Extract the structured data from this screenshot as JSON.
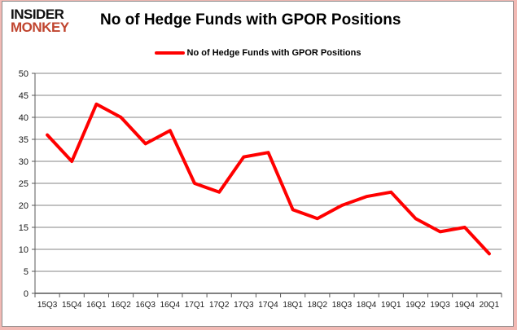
{
  "logo": {
    "line1": "INSIDER",
    "line2": "MONKEY"
  },
  "title": "No of Hedge Funds with GPOR Positions",
  "legend": {
    "label": "No of Hedge Funds with GPOR Positions",
    "color": "#ff0000"
  },
  "chart_data": {
    "type": "line",
    "title": "No of Hedge Funds with GPOR Positions",
    "categories": [
      "15Q3",
      "15Q4",
      "16Q1",
      "16Q2",
      "16Q3",
      "16Q4",
      "17Q1",
      "17Q2",
      "17Q3",
      "17Q4",
      "18Q1",
      "18Q2",
      "18Q3",
      "18Q4",
      "19Q1",
      "19Q2",
      "19Q3",
      "19Q4",
      "20Q1"
    ],
    "series": [
      {
        "name": "No of Hedge Funds with GPOR Positions",
        "color": "#ff0000",
        "values": [
          36,
          30,
          43,
          40,
          34,
          37,
          25,
          23,
          31,
          32,
          19,
          17,
          20,
          22,
          23,
          17,
          14,
          15,
          9
        ]
      }
    ],
    "xlabel": "",
    "ylabel": "",
    "ylim": [
      0,
      50
    ],
    "ytick_step": 5,
    "grid": true,
    "legend_position": "top"
  },
  "colors": {
    "line": "#ff0000",
    "gridline": "#848484",
    "axis": "#595959",
    "tick_label": "#1a1a1a",
    "frame": "#8c8c8c",
    "outer_border": "#f2b9b4",
    "logo_red": "#c0452f"
  }
}
